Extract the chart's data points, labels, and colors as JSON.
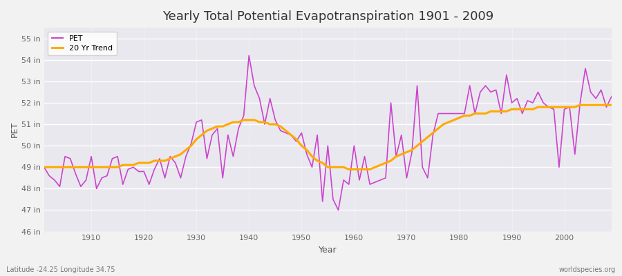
{
  "title": "Yearly Total Potential Evapotranspiration 1901 - 2009",
  "xlabel": "Year",
  "ylabel": "PET",
  "footnote_left": "Latitude -24.25 Longitude 34.75",
  "footnote_right": "worldspecies.org",
  "pet_color": "#cc44cc",
  "trend_color": "#ffaa00",
  "bg_color": "#f0f0f0",
  "plot_bg_color": "#e8e8ee",
  "ylim": [
    46,
    55.5
  ],
  "yticks": [
    46,
    47,
    48,
    49,
    50,
    51,
    52,
    53,
    54,
    55
  ],
  "ytick_labels": [
    "46 in",
    "47 in",
    "48 in",
    "49 in",
    "50 in",
    "51 in",
    "52 in",
    "53 in",
    "54 in",
    "55 in"
  ],
  "xlim": [
    1901,
    2009
  ],
  "xticks": [
    1910,
    1920,
    1930,
    1940,
    1950,
    1960,
    1970,
    1980,
    1990,
    2000
  ],
  "years": [
    1901,
    1902,
    1903,
    1904,
    1905,
    1906,
    1907,
    1908,
    1909,
    1910,
    1911,
    1912,
    1913,
    1914,
    1915,
    1916,
    1917,
    1918,
    1919,
    1920,
    1921,
    1922,
    1923,
    1924,
    1925,
    1926,
    1927,
    1928,
    1929,
    1930,
    1931,
    1932,
    1933,
    1934,
    1935,
    1936,
    1937,
    1938,
    1939,
    1940,
    1941,
    1942,
    1943,
    1944,
    1945,
    1946,
    1947,
    1948,
    1949,
    1950,
    1951,
    1952,
    1953,
    1954,
    1955,
    1956,
    1957,
    1958,
    1959,
    1960,
    1961,
    1962,
    1963,
    1964,
    1965,
    1966,
    1967,
    1968,
    1969,
    1970,
    1971,
    1972,
    1973,
    1974,
    1975,
    1976,
    1977,
    1978,
    1979,
    1980,
    1981,
    1982,
    1983,
    1984,
    1985,
    1986,
    1987,
    1988,
    1989,
    1990,
    1991,
    1992,
    1993,
    1994,
    1995,
    1996,
    1997,
    1998,
    1999,
    2000,
    2001,
    2002,
    2003,
    2004,
    2005,
    2006,
    2007,
    2008,
    2009
  ],
  "pet_values": [
    49.0,
    48.6,
    48.4,
    48.1,
    49.5,
    49.4,
    48.7,
    48.1,
    48.4,
    49.5,
    48.0,
    48.5,
    48.6,
    49.4,
    49.5,
    48.2,
    48.9,
    49.0,
    48.8,
    48.8,
    48.2,
    48.9,
    49.4,
    48.5,
    49.5,
    49.2,
    48.5,
    49.5,
    50.1,
    51.1,
    51.2,
    49.4,
    50.5,
    50.8,
    48.5,
    50.5,
    49.5,
    50.8,
    51.4,
    54.2,
    52.8,
    52.2,
    51.0,
    52.2,
    51.2,
    50.7,
    50.6,
    50.5,
    50.2,
    50.6,
    49.6,
    49.0,
    50.5,
    47.4,
    50.0,
    47.5,
    47.0,
    48.4,
    48.2,
    50.0,
    48.4,
    49.5,
    48.2,
    48.3,
    48.4,
    48.5,
    52.0,
    49.5,
    50.5,
    48.5,
    49.7,
    52.8,
    49.0,
    48.5,
    50.5,
    51.5,
    51.5,
    51.5,
    51.5,
    51.5,
    51.5,
    52.8,
    51.5,
    52.5,
    52.8,
    52.5,
    52.6,
    51.5,
    53.3,
    52.0,
    52.2,
    51.5,
    52.1,
    52.0,
    52.5,
    52.0,
    51.8,
    51.7,
    49.0,
    51.7,
    51.8,
    49.6,
    52.0,
    53.6,
    52.5,
    52.2,
    52.6,
    51.8,
    52.3
  ],
  "trend_values": [
    49.0,
    49.0,
    49.0,
    49.0,
    49.0,
    49.0,
    49.0,
    49.0,
    49.0,
    49.0,
    49.0,
    49.0,
    49.0,
    49.0,
    49.0,
    49.1,
    49.1,
    49.1,
    49.2,
    49.2,
    49.2,
    49.3,
    49.3,
    49.3,
    49.4,
    49.5,
    49.6,
    49.8,
    50.0,
    50.3,
    50.5,
    50.7,
    50.8,
    50.9,
    50.9,
    51.0,
    51.1,
    51.1,
    51.2,
    51.2,
    51.2,
    51.1,
    51.1,
    51.0,
    51.0,
    50.9,
    50.7,
    50.5,
    50.3,
    50.0,
    49.8,
    49.5,
    49.3,
    49.2,
    49.0,
    49.0,
    49.0,
    49.0,
    48.9,
    48.9,
    48.9,
    48.9,
    48.9,
    49.0,
    49.1,
    49.2,
    49.3,
    49.5,
    49.6,
    49.7,
    49.8,
    50.0,
    50.2,
    50.4,
    50.6,
    50.8,
    51.0,
    51.1,
    51.2,
    51.3,
    51.4,
    51.4,
    51.5,
    51.5,
    51.5,
    51.6,
    51.6,
    51.6,
    51.6,
    51.7,
    51.7,
    51.7,
    51.7,
    51.7,
    51.8,
    51.8,
    51.8,
    51.8,
    51.8,
    51.8,
    51.8,
    51.8,
    51.9,
    51.9,
    51.9,
    51.9,
    51.9,
    51.9,
    51.9
  ]
}
